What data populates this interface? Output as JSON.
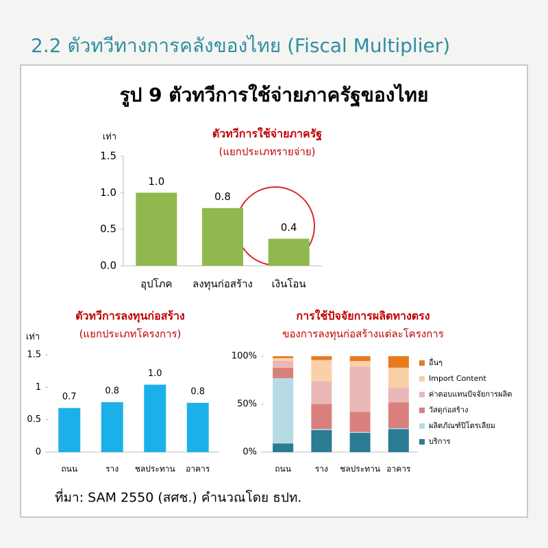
{
  "header": "2.2 ตัวทวีทางการคลังของไทย (Fiscal Multiplier)",
  "figure_title": "รูป 9 ตัวทวีการใช้จ่ายภาครัฐของไทย",
  "source": "ที่มา: SAM 2550 (สศช.) คำนวณโดย ธปท.",
  "chart_data": [
    {
      "type": "bar",
      "title": "ตัวทวีการใช้จ่ายภาครัฐ",
      "subtitle": "(แยกประเภทรายจ่าย)",
      "y_label": "เท่า",
      "categories": [
        "อุปโภค",
        "ลงทุนก่อสร้าง",
        "เงินโอน"
      ],
      "values": [
        1.0,
        0.79,
        0.37
      ],
      "value_labels": [
        "1.0",
        "0.8",
        "0.4"
      ],
      "color": "#8fb84e",
      "ylim": [
        0,
        1.5
      ],
      "yticks": [
        {
          "value": 0,
          "label": "0.0"
        },
        {
          "value": 0.5,
          "label": "0.5"
        },
        {
          "value": 1,
          "label": "1.0"
        },
        {
          "value": 1.5,
          "label": "1.5"
        }
      ],
      "grid": false
    },
    {
      "type": "bar",
      "title": "ตัวทวีการลงทุนก่อสร้าง",
      "subtitle": "(แยกประเภทโครงการ)",
      "y_label": "เท่า",
      "categories": [
        "ถนน",
        "ราง",
        "ชลประทาน",
        "อาคาร"
      ],
      "values": [
        0.68,
        0.77,
        1.04,
        0.76
      ],
      "value_labels": [
        "0.7",
        "0.8",
        "1.0",
        "0.8"
      ],
      "color": "#1cb0ea",
      "ylim": [
        0,
        1.5
      ],
      "yticks": [
        0,
        0.5,
        1,
        1.5
      ],
      "grid": false
    },
    {
      "type": "stacked_bar",
      "title": "การใช้ปัจจัยการผลิตทางตรง",
      "subtitle": "ของการลงทุนก่อสร้างแต่ละโครงการ",
      "categories": [
        "ถนน",
        "ราง",
        "ชลประทาน",
        "อาคาร"
      ],
      "series": [
        {
          "name": "บริการ",
          "color": "#2b7b93",
          "values": [
            9,
            23,
            20,
            24
          ]
        },
        {
          "name": "ผลิตภัณฑ์ปิโตรเลียม",
          "color": "#b7dbe5",
          "values": [
            68,
            1,
            1,
            1
          ]
        },
        {
          "name": "วัสดุก่อสร้าง",
          "color": "#d9807d",
          "values": [
            11,
            26,
            21,
            27
          ]
        },
        {
          "name": "ค่าตอบแทนปัจจัยการผลิต",
          "color": "#e9b8b6",
          "values": [
            7,
            24,
            47,
            15
          ]
        },
        {
          "name": "Import Content",
          "color": "#f9d0a8",
          "values": [
            3,
            22,
            6,
            21
          ]
        },
        {
          "name": "อื่นๆ",
          "color": "#e97a1f",
          "values": [
            2,
            4,
            5,
            12
          ]
        }
      ],
      "ylim": [
        0,
        100
      ],
      "yticks": [
        {
          "value": 0,
          "label": "0%"
        },
        {
          "value": 50,
          "label": "50%"
        },
        {
          "value": 100,
          "label": "100%"
        }
      ],
      "legend": "right",
      "grid": false
    }
  ]
}
